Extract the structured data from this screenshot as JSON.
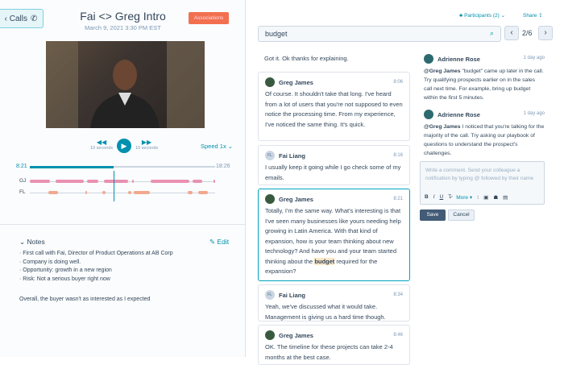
{
  "header": {
    "back_label": "‹ Calls",
    "title": "Fai <> Greg Intro",
    "datetime": "March 9, 2021 3:30 PM EST",
    "associations": "Associations",
    "participants": "Participants (2) ⌄",
    "share": "Share"
  },
  "player": {
    "rewind_label": "10 seconds",
    "forward_label": "10 seconds",
    "speed": "Speed 1x ⌄",
    "current": "8:21",
    "total": "18:26",
    "progress": 0.453,
    "speakers": [
      {
        "label": "GJ",
        "color": "#e991b0",
        "segments": [
          [
            0,
            0.11
          ],
          [
            0.14,
            0.29
          ],
          [
            0.31,
            0.37
          ],
          [
            0.4,
            0.53
          ],
          [
            0.55,
            0.56
          ],
          [
            0.65,
            0.86
          ],
          [
            0.88,
            0.93
          ],
          [
            0.99,
            1
          ]
        ]
      },
      {
        "label": "FL",
        "color": "#f2a88e",
        "segments": [
          [
            0.1,
            0.15
          ],
          [
            0.3,
            0.31
          ],
          [
            0.39,
            0.41
          ],
          [
            0.53,
            0.55
          ],
          [
            0.56,
            0.65
          ],
          [
            0.85,
            0.88
          ],
          [
            0.91,
            0.96
          ]
        ]
      }
    ]
  },
  "notes": {
    "title": "Notes",
    "edit": "Edit",
    "items": [
      "· First call with Fai, Director of Product Operations at AB Corp",
      "· Company is doing well.",
      "· Opportunity: growth in a new region",
      "· Risk: Not a serious buyer right now"
    ],
    "summary": "Overall, the buyer wasn't as interested as I expected"
  },
  "search": {
    "value": "budget",
    "position": "2/6"
  },
  "transcript": [
    {
      "speaker": "",
      "time": "",
      "text": "Got it. Ok thanks for explaining."
    },
    {
      "speaker": "Greg James",
      "time": "8:06",
      "text": "Of course. It shouldn't take that long. I've heard from a lot of users that you're not supposed to even notice the processing time. From my experience, I've noticed the same thing. It's quick."
    },
    {
      "speaker": "Fai Liang",
      "initials": "FL",
      "time": "8:16",
      "text": "I usually keep it going while I go check some of my emails."
    },
    {
      "speaker": "Greg James",
      "time": "8:21",
      "text": "Totally, I'm the same way. What's interesting is that I've seen many businesses like yours needing help growing in Latin America. With that kind of expansion, how is your team thinking about new technology? And have you and your team started thinking about the",
      "highlight": "budget",
      "text_after": " required for the expansion?"
    },
    {
      "speaker": "Fai Liang",
      "initials": "FL",
      "time": "8:34",
      "text": "Yeah, we've discussed what it would take. Management is giving us a hard time though."
    },
    {
      "speaker": "Greg James",
      "time": "8:46",
      "text": "OK. The timeline for these projects can take 2-4 months at the best case."
    }
  ],
  "comments": [
    {
      "author": "Adrienne Rose",
      "time": "1 day ago",
      "mention": "@Greg James",
      "text": " \"budget\" came up later in the call. Try qualifying prospects earlier on in the sales call next time. For example, bring up budget within the first 5 minutes."
    },
    {
      "author": "Adrienne Rose",
      "time": "1 day ago",
      "mention": "@Greg James",
      "text": " I noticed that you're talking for the majority of the call. Try asking our playbook of questions to understand the prospect's challenges."
    }
  ],
  "composer": {
    "placeholder": "Write a comment. Send your colleague a notification by typing @ followed by their name",
    "more": "More ▾",
    "save": "Save",
    "cancel": "Cancel"
  },
  "colors": {
    "accent": "#0091ae",
    "associations": "#f2704f",
    "highlight": "#fce6c5"
  }
}
